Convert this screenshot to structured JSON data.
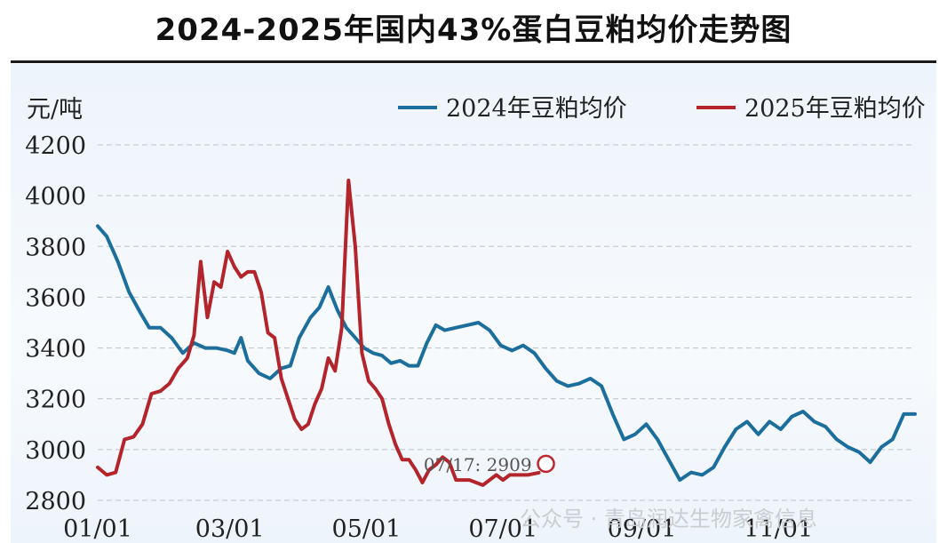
{
  "title": "2024-2025年国内43%蛋白豆粕均价走势图",
  "watermark": "公众号 · 青岛润达生物家禽信息",
  "chart_data": {
    "type": "line",
    "title": "2024-2025年国内43%蛋白豆粕均价走势图",
    "ylabel": "元/吨",
    "ylim": [
      2800,
      4200
    ],
    "yticks": [
      2800,
      3000,
      3200,
      3400,
      3600,
      3800,
      4000,
      4200
    ],
    "xlim": [
      "01/01",
      "12/31"
    ],
    "xticks": [
      "01/01",
      "03/01",
      "05/01",
      "07/01",
      "09/01",
      "11/01"
    ],
    "grid": true,
    "legend_position": "top-right",
    "annotation": {
      "text": "07/17: 2909",
      "x": "07/17",
      "y": 2909
    },
    "series": [
      {
        "name": "2024年豆粕均价",
        "color": "#1c6e9c",
        "points": [
          [
            "01/01",
            3880
          ],
          [
            "01/05",
            3840
          ],
          [
            "01/10",
            3740
          ],
          [
            "01/15",
            3620
          ],
          [
            "01/20",
            3540
          ],
          [
            "01/24",
            3480
          ],
          [
            "01/29",
            3480
          ],
          [
            "02/03",
            3440
          ],
          [
            "02/08",
            3380
          ],
          [
            "02/13",
            3420
          ],
          [
            "02/18",
            3400
          ],
          [
            "02/23",
            3400
          ],
          [
            "02/28",
            3390
          ],
          [
            "03/03",
            3380
          ],
          [
            "03/06",
            3440
          ],
          [
            "03/09",
            3350
          ],
          [
            "03/14",
            3300
          ],
          [
            "03/19",
            3280
          ],
          [
            "03/24",
            3320
          ],
          [
            "03/28",
            3330
          ],
          [
            "04/01",
            3440
          ],
          [
            "04/06",
            3520
          ],
          [
            "04/10",
            3560
          ],
          [
            "04/14",
            3640
          ],
          [
            "04/18",
            3550
          ],
          [
            "04/22",
            3480
          ],
          [
            "04/26",
            3440
          ],
          [
            "04/30",
            3400
          ],
          [
            "05/04",
            3380
          ],
          [
            "05/08",
            3370
          ],
          [
            "05/12",
            3340
          ],
          [
            "05/16",
            3350
          ],
          [
            "05/20",
            3330
          ],
          [
            "05/24",
            3330
          ],
          [
            "05/28",
            3420
          ],
          [
            "06/01",
            3490
          ],
          [
            "06/05",
            3470
          ],
          [
            "06/10",
            3480
          ],
          [
            "06/15",
            3490
          ],
          [
            "06/20",
            3500
          ],
          [
            "06/25",
            3470
          ],
          [
            "06/30",
            3410
          ],
          [
            "07/05",
            3390
          ],
          [
            "07/10",
            3410
          ],
          [
            "07/15",
            3380
          ],
          [
            "07/20",
            3320
          ],
          [
            "07/25",
            3270
          ],
          [
            "07/30",
            3250
          ],
          [
            "08/04",
            3260
          ],
          [
            "08/09",
            3280
          ],
          [
            "08/14",
            3250
          ],
          [
            "08/19",
            3140
          ],
          [
            "08/24",
            3040
          ],
          [
            "08/29",
            3060
          ],
          [
            "09/03",
            3100
          ],
          [
            "09/08",
            3040
          ],
          [
            "09/13",
            2960
          ],
          [
            "09/18",
            2880
          ],
          [
            "09/23",
            2910
          ],
          [
            "09/28",
            2900
          ],
          [
            "10/03",
            2930
          ],
          [
            "10/08",
            3010
          ],
          [
            "10/13",
            3080
          ],
          [
            "10/18",
            3110
          ],
          [
            "10/23",
            3060
          ],
          [
            "10/28",
            3110
          ],
          [
            "11/02",
            3080
          ],
          [
            "11/07",
            3130
          ],
          [
            "11/12",
            3150
          ],
          [
            "11/17",
            3110
          ],
          [
            "11/22",
            3090
          ],
          [
            "11/27",
            3040
          ],
          [
            "12/02",
            3010
          ],
          [
            "12/07",
            2990
          ],
          [
            "12/12",
            2950
          ],
          [
            "12/17",
            3010
          ],
          [
            "12/22",
            3040
          ],
          [
            "12/27",
            3140
          ],
          [
            "01/01",
            3140
          ]
        ]
      },
      {
        "name": "2025年豆粕均价",
        "color": "#b3242b",
        "points": [
          [
            "01/01",
            2930
          ],
          [
            "01/05",
            2900
          ],
          [
            "01/09",
            2910
          ],
          [
            "01/13",
            3040
          ],
          [
            "01/17",
            3050
          ],
          [
            "01/21",
            3100
          ],
          [
            "01/25",
            3220
          ],
          [
            "01/29",
            3230
          ],
          [
            "02/02",
            3260
          ],
          [
            "02/06",
            3320
          ],
          [
            "02/10",
            3360
          ],
          [
            "02/13",
            3450
          ],
          [
            "02/16",
            3740
          ],
          [
            "02/19",
            3520
          ],
          [
            "02/22",
            3660
          ],
          [
            "02/25",
            3640
          ],
          [
            "02/28",
            3780
          ],
          [
            "03/03",
            3720
          ],
          [
            "03/06",
            3680
          ],
          [
            "03/09",
            3700
          ],
          [
            "03/12",
            3700
          ],
          [
            "03/15",
            3620
          ],
          [
            "03/18",
            3460
          ],
          [
            "03/21",
            3440
          ],
          [
            "03/24",
            3280
          ],
          [
            "03/27",
            3200
          ],
          [
            "03/30",
            3120
          ],
          [
            "04/02",
            3080
          ],
          [
            "04/05",
            3100
          ],
          [
            "04/08",
            3180
          ],
          [
            "04/11",
            3240
          ],
          [
            "04/14",
            3360
          ],
          [
            "04/17",
            3310
          ],
          [
            "04/20",
            3480
          ],
          [
            "04/23",
            4060
          ],
          [
            "04/26",
            3800
          ],
          [
            "04/29",
            3380
          ],
          [
            "05/02",
            3270
          ],
          [
            "05/05",
            3240
          ],
          [
            "05/08",
            3200
          ],
          [
            "05/11",
            3100
          ],
          [
            "05/14",
            3020
          ],
          [
            "05/17",
            2960
          ],
          [
            "05/20",
            2960
          ],
          [
            "05/23",
            2920
          ],
          [
            "05/26",
            2870
          ],
          [
            "05/29",
            2920
          ],
          [
            "06/01",
            2940
          ],
          [
            "06/04",
            2970
          ],
          [
            "06/07",
            2950
          ],
          [
            "06/10",
            2880
          ],
          [
            "06/13",
            2880
          ],
          [
            "06/16",
            2880
          ],
          [
            "06/19",
            2870
          ],
          [
            "06/22",
            2860
          ],
          [
            "06/25",
            2880
          ],
          [
            "06/28",
            2900
          ],
          [
            "07/01",
            2880
          ],
          [
            "07/04",
            2900
          ],
          [
            "07/08",
            2900
          ],
          [
            "07/12",
            2900
          ],
          [
            "07/17",
            2909
          ]
        ]
      }
    ]
  }
}
